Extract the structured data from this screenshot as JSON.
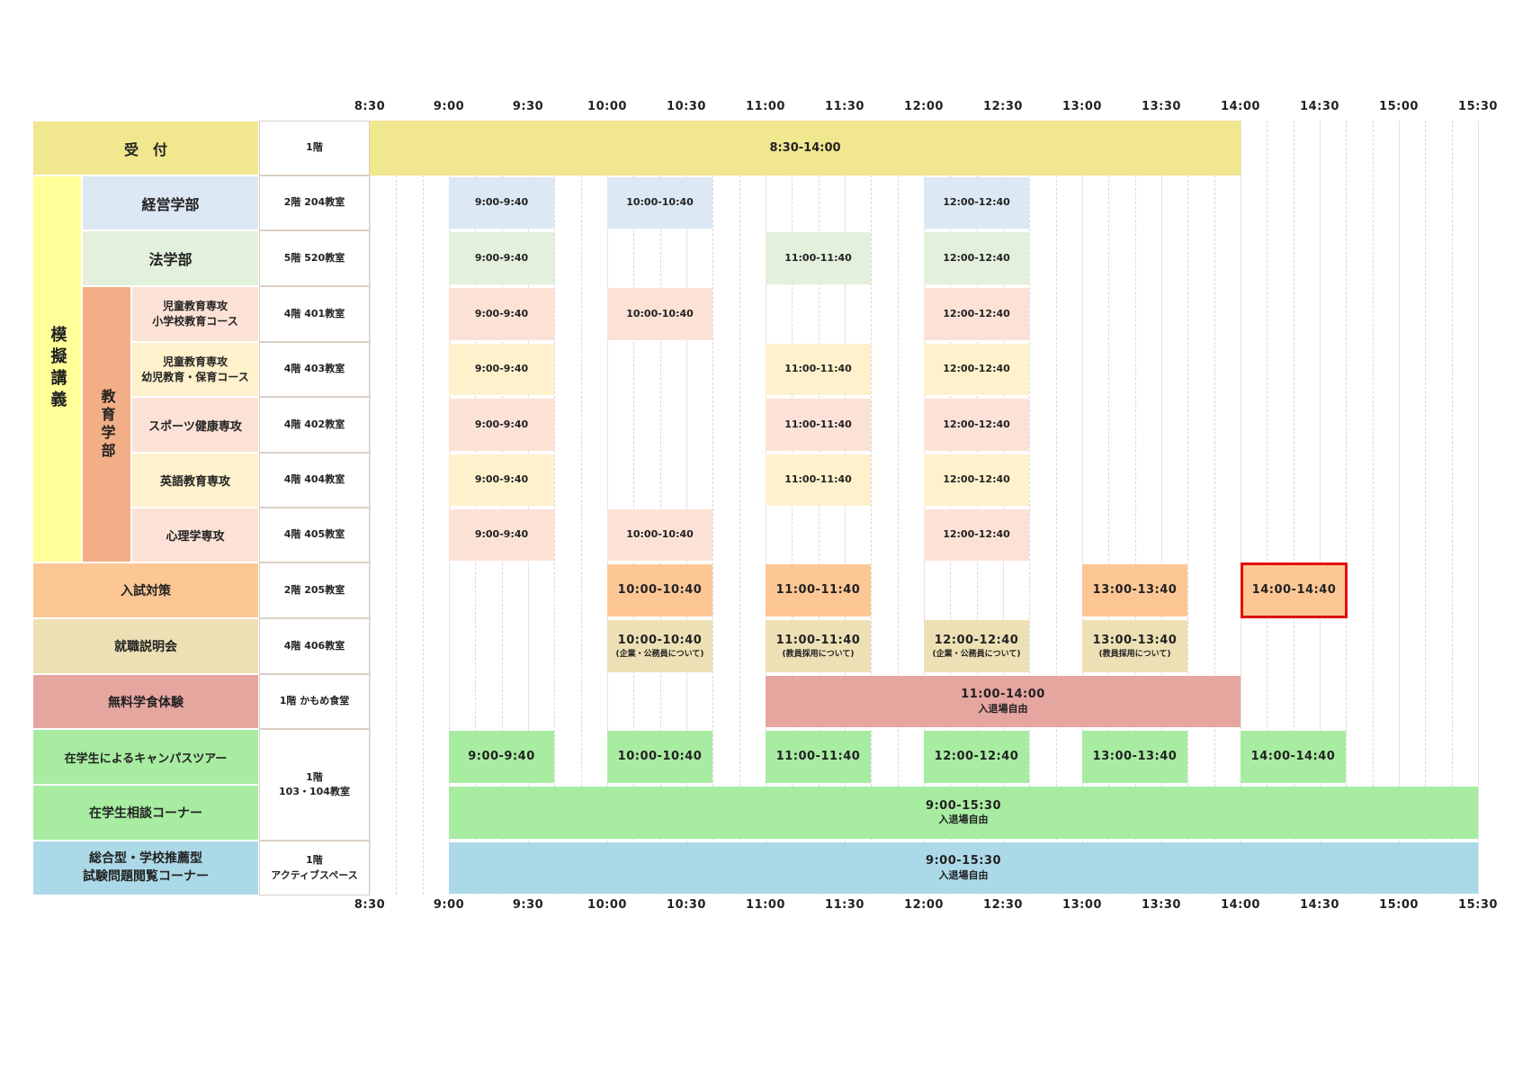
{
  "time_axis": [
    "8:30",
    "9:00",
    "9:30",
    "10:00",
    "10:30",
    "11:00",
    "11:30",
    "12:00",
    "12:30",
    "13:00",
    "13:30",
    "14:00",
    "14:30",
    "15:00",
    "15:30"
  ],
  "colors": {
    "reception": "#f1e78f",
    "mogi_group": "#ffff99",
    "keiei": "#dce8f4",
    "hogaku": "#e3f0dc",
    "kyoiku_group": "#f2ae86",
    "jido_shogakko": "#fce2d6",
    "jido_yoji": "#fff1cc",
    "sports": "#fce2d6",
    "eigo": "#fff1cc",
    "shinri": "#fce2d6",
    "nyushi": "#fdc795",
    "shushoku": "#ede0b5",
    "gakushoku": "#e6a6a0",
    "tour": "#a8eca2",
    "soudan": "#a8eca2",
    "sogo": "#acd9e8",
    "highlight_border": "#e01010"
  },
  "labels": {
    "uketsuke": "受　付",
    "mogi_kogi": "模擬講義",
    "keiei": "経営学部",
    "hogaku": "法学部",
    "kyoiku": "教育学部",
    "jido_shogakko": "児童教育専攻\n小学校教育コース",
    "jido_yoji": "児童教育専攻\n幼児教育・保育コース",
    "sports": "スポーツ健康専攻",
    "eigo": "英語教育専攻",
    "shinri": "心理学専攻",
    "nyushi": "入試対策",
    "shushoku": "就職説明会",
    "gakushoku": "無料学食体験",
    "tour": "在学生によるキャンパスツアー",
    "soudan": "在学生相談コーナー",
    "sogo": "総合型・学校推薦型\n試験問題閲覧コーナー"
  },
  "rooms": {
    "uketsuke": "1階",
    "keiei": "2階 204教室",
    "hogaku": "5階 520教室",
    "jido_shogakko": "4階 401教室",
    "jido_yoji": "4階 403教室",
    "sports": "4階 402教室",
    "eigo": "4階 404教室",
    "shinri": "4階 405教室",
    "nyushi": "2階 205教室",
    "shushoku": "4階 406教室",
    "gakushoku": "1階 かもめ食堂",
    "tour_soudan": "1階\n103・104教室",
    "sogo": "1階\nアクティブスペース"
  },
  "schedule": {
    "uketsuke": [
      "8:30-14:00"
    ],
    "keiei": [
      "9:00-9:40",
      "10:00-10:40",
      "12:00-12:40"
    ],
    "hogaku": [
      "9:00-9:40",
      "11:00-11:40",
      "12:00-12:40"
    ],
    "jido_shogakko": [
      "9:00-9:40",
      "10:00-10:40",
      "12:00-12:40"
    ],
    "jido_yoji": [
      "9:00-9:40",
      "11:00-11:40",
      "12:00-12:40"
    ],
    "sports": [
      "9:00-9:40",
      "11:00-11:40",
      "12:00-12:40"
    ],
    "eigo": [
      "9:00-9:40",
      "11:00-11:40",
      "12:00-12:40"
    ],
    "shinri": [
      "9:00-9:40",
      "10:00-10:40",
      "12:00-12:40"
    ],
    "nyushi": [
      "10:00-10:40",
      "11:00-11:40",
      "13:00-13:40",
      "14:00-14:40"
    ],
    "shushoku": [
      {
        "time": "10:00-10:40",
        "note": "(企業・公務員について)"
      },
      {
        "time": "11:00-11:40",
        "note": "(教員採用について)"
      },
      {
        "time": "12:00-12:40",
        "note": "(企業・公務員について)"
      },
      {
        "time": "13:00-13:40",
        "note": "(教員採用について)"
      }
    ],
    "gakushoku": {
      "time": "11:00-14:00",
      "note": "入退場自由"
    },
    "tour": [
      "9:00-9:40",
      "10:00-10:40",
      "11:00-11:40",
      "12:00-12:40",
      "13:00-13:40",
      "14:00-14:40"
    ],
    "soudan": {
      "time": "9:00-15:30",
      "note": "入退場自由"
    },
    "sogo": {
      "time": "9:00-15:30",
      "note": "入退場自由"
    }
  }
}
